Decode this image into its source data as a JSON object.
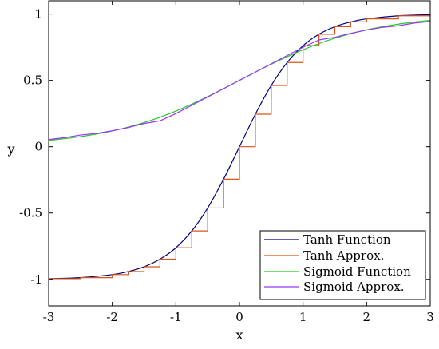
{
  "chart_data": {
    "type": "line",
    "title": "",
    "xlabel": "x",
    "ylabel": "y",
    "xlim": [
      -3,
      3
    ],
    "ylim": [
      -1.2,
      1.1
    ],
    "xticks": [
      -3,
      -2,
      -1,
      0,
      1,
      2,
      3
    ],
    "xtick_labels": [
      "-3",
      "-2",
      "-1",
      "0",
      "1",
      "2",
      "3"
    ],
    "yticks": [
      -1,
      -0.5,
      0,
      0.5,
      1
    ],
    "ytick_labels": [
      "-1",
      "-0.5",
      "0",
      "0.5",
      "1"
    ],
    "grid": false,
    "legend_position": "bottom-right",
    "series": [
      {
        "name": "Tanh Function",
        "color": "#00007F",
        "style": "smooth",
        "x": [
          -3.0,
          -2.5,
          -2.0,
          -1.75,
          -1.5,
          -1.25,
          -1.0,
          -0.75,
          -0.5,
          -0.25,
          0.0,
          0.25,
          0.5,
          0.75,
          1.0,
          1.25,
          1.5,
          1.75,
          2.0,
          2.5,
          3.0
        ],
        "y": [
          -0.995,
          -0.987,
          -0.964,
          -0.941,
          -0.905,
          -0.848,
          -0.762,
          -0.635,
          -0.462,
          -0.245,
          0.0,
          0.245,
          0.462,
          0.635,
          0.762,
          0.848,
          0.905,
          0.941,
          0.964,
          0.987,
          0.995
        ]
      },
      {
        "name": "Tanh Approx.",
        "color": "#D95319",
        "style": "step",
        "x": [
          -3.0,
          -2.5,
          -2.0,
          -1.75,
          -1.5,
          -1.25,
          -1.0,
          -0.75,
          -0.5,
          -0.25,
          0.0,
          0.25,
          0.5,
          0.75,
          1.0,
          1.25,
          1.5,
          1.75,
          2.0,
          2.5,
          3.0
        ],
        "y": [
          -0.995,
          -0.987,
          -0.964,
          -0.941,
          -0.905,
          -0.848,
          -0.762,
          -0.635,
          -0.462,
          -0.245,
          0.0,
          0.245,
          0.462,
          0.635,
          0.762,
          0.848,
          0.905,
          0.941,
          0.964,
          0.987,
          0.995
        ]
      },
      {
        "name": "Sigmoid Function",
        "color": "#22CC22",
        "style": "smooth",
        "x": [
          -3.0,
          -2.5,
          -2.0,
          -1.5,
          -1.0,
          -0.5,
          0.0,
          0.5,
          1.0,
          1.5,
          2.0,
          2.5,
          3.0
        ],
        "y": [
          0.047,
          0.076,
          0.119,
          0.182,
          0.269,
          0.378,
          0.5,
          0.622,
          0.731,
          0.818,
          0.881,
          0.924,
          0.953
        ]
      },
      {
        "name": "Sigmoid Approx.",
        "color": "#9933FF",
        "style": "piecewise",
        "x": [
          -3.0,
          -2.9,
          -2.75,
          -2.5,
          -2.25,
          -2.0,
          -1.75,
          -1.5,
          -1.25,
          -1.0,
          -0.5,
          0.0,
          0.5,
          1.0,
          1.25,
          1.5,
          1.75,
          2.0,
          2.25,
          2.5,
          2.75,
          3.0
        ],
        "y": [
          0.055,
          0.06,
          0.068,
          0.088,
          0.1,
          0.12,
          0.145,
          0.175,
          0.195,
          0.25,
          0.375,
          0.5,
          0.625,
          0.75,
          0.805,
          0.825,
          0.855,
          0.88,
          0.9,
          0.912,
          0.932,
          0.945
        ]
      }
    ]
  }
}
